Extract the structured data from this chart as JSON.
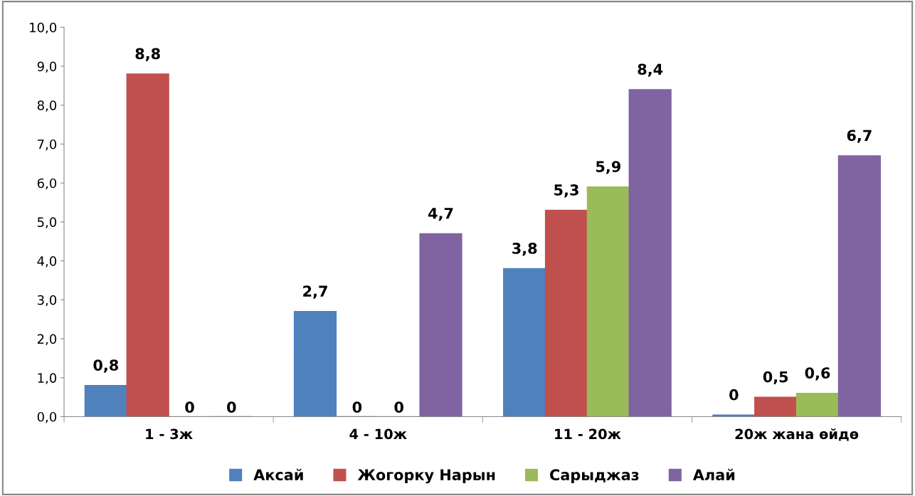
{
  "chart_data": {
    "type": "bar",
    "categories": [
      "1 - 3ж",
      "4 - 10ж",
      "11 - 20ж",
      "20ж жана өйдө"
    ],
    "series": [
      {
        "name": "Аксай",
        "color": "#4f81bd",
        "values": [
          0.8,
          2.7,
          3.8,
          0.04
        ],
        "value_labels": [
          "0,8",
          "2,7",
          "3,8",
          "0"
        ]
      },
      {
        "name": "Жогорку Нарын",
        "color": "#c0504d",
        "values": [
          8.8,
          0,
          5.3,
          0.5
        ],
        "value_labels": [
          "8,8",
          "0",
          "5,3",
          "0,5"
        ]
      },
      {
        "name": "Сарыджаз",
        "color": "#9bbb59",
        "values": [
          0,
          0,
          5.9,
          0.6
        ],
        "value_labels": [
          "0",
          "0",
          "5,9",
          "0,6"
        ]
      },
      {
        "name": "Алай",
        "color": "#8064a2",
        "values": [
          0,
          4.7,
          8.4,
          6.7
        ],
        "value_labels": [
          "0",
          "4,7",
          "8,4",
          "6,7"
        ]
      }
    ],
    "ylim": [
      0,
      10
    ],
    "yticks": [
      {
        "value": 0,
        "label": "0,0"
      },
      {
        "value": 1,
        "label": "1,0"
      },
      {
        "value": 2,
        "label": "2,0"
      },
      {
        "value": 3,
        "label": "3,0"
      },
      {
        "value": 4,
        "label": "4,0"
      },
      {
        "value": 5,
        "label": "5,0"
      },
      {
        "value": 6,
        "label": "6,0"
      },
      {
        "value": 7,
        "label": "7,0"
      },
      {
        "value": 8,
        "label": "8,0"
      },
      {
        "value": 9,
        "label": "9,0"
      },
      {
        "value": 10,
        "label": "10,0"
      }
    ],
    "legend": "bottom",
    "grid": false
  }
}
